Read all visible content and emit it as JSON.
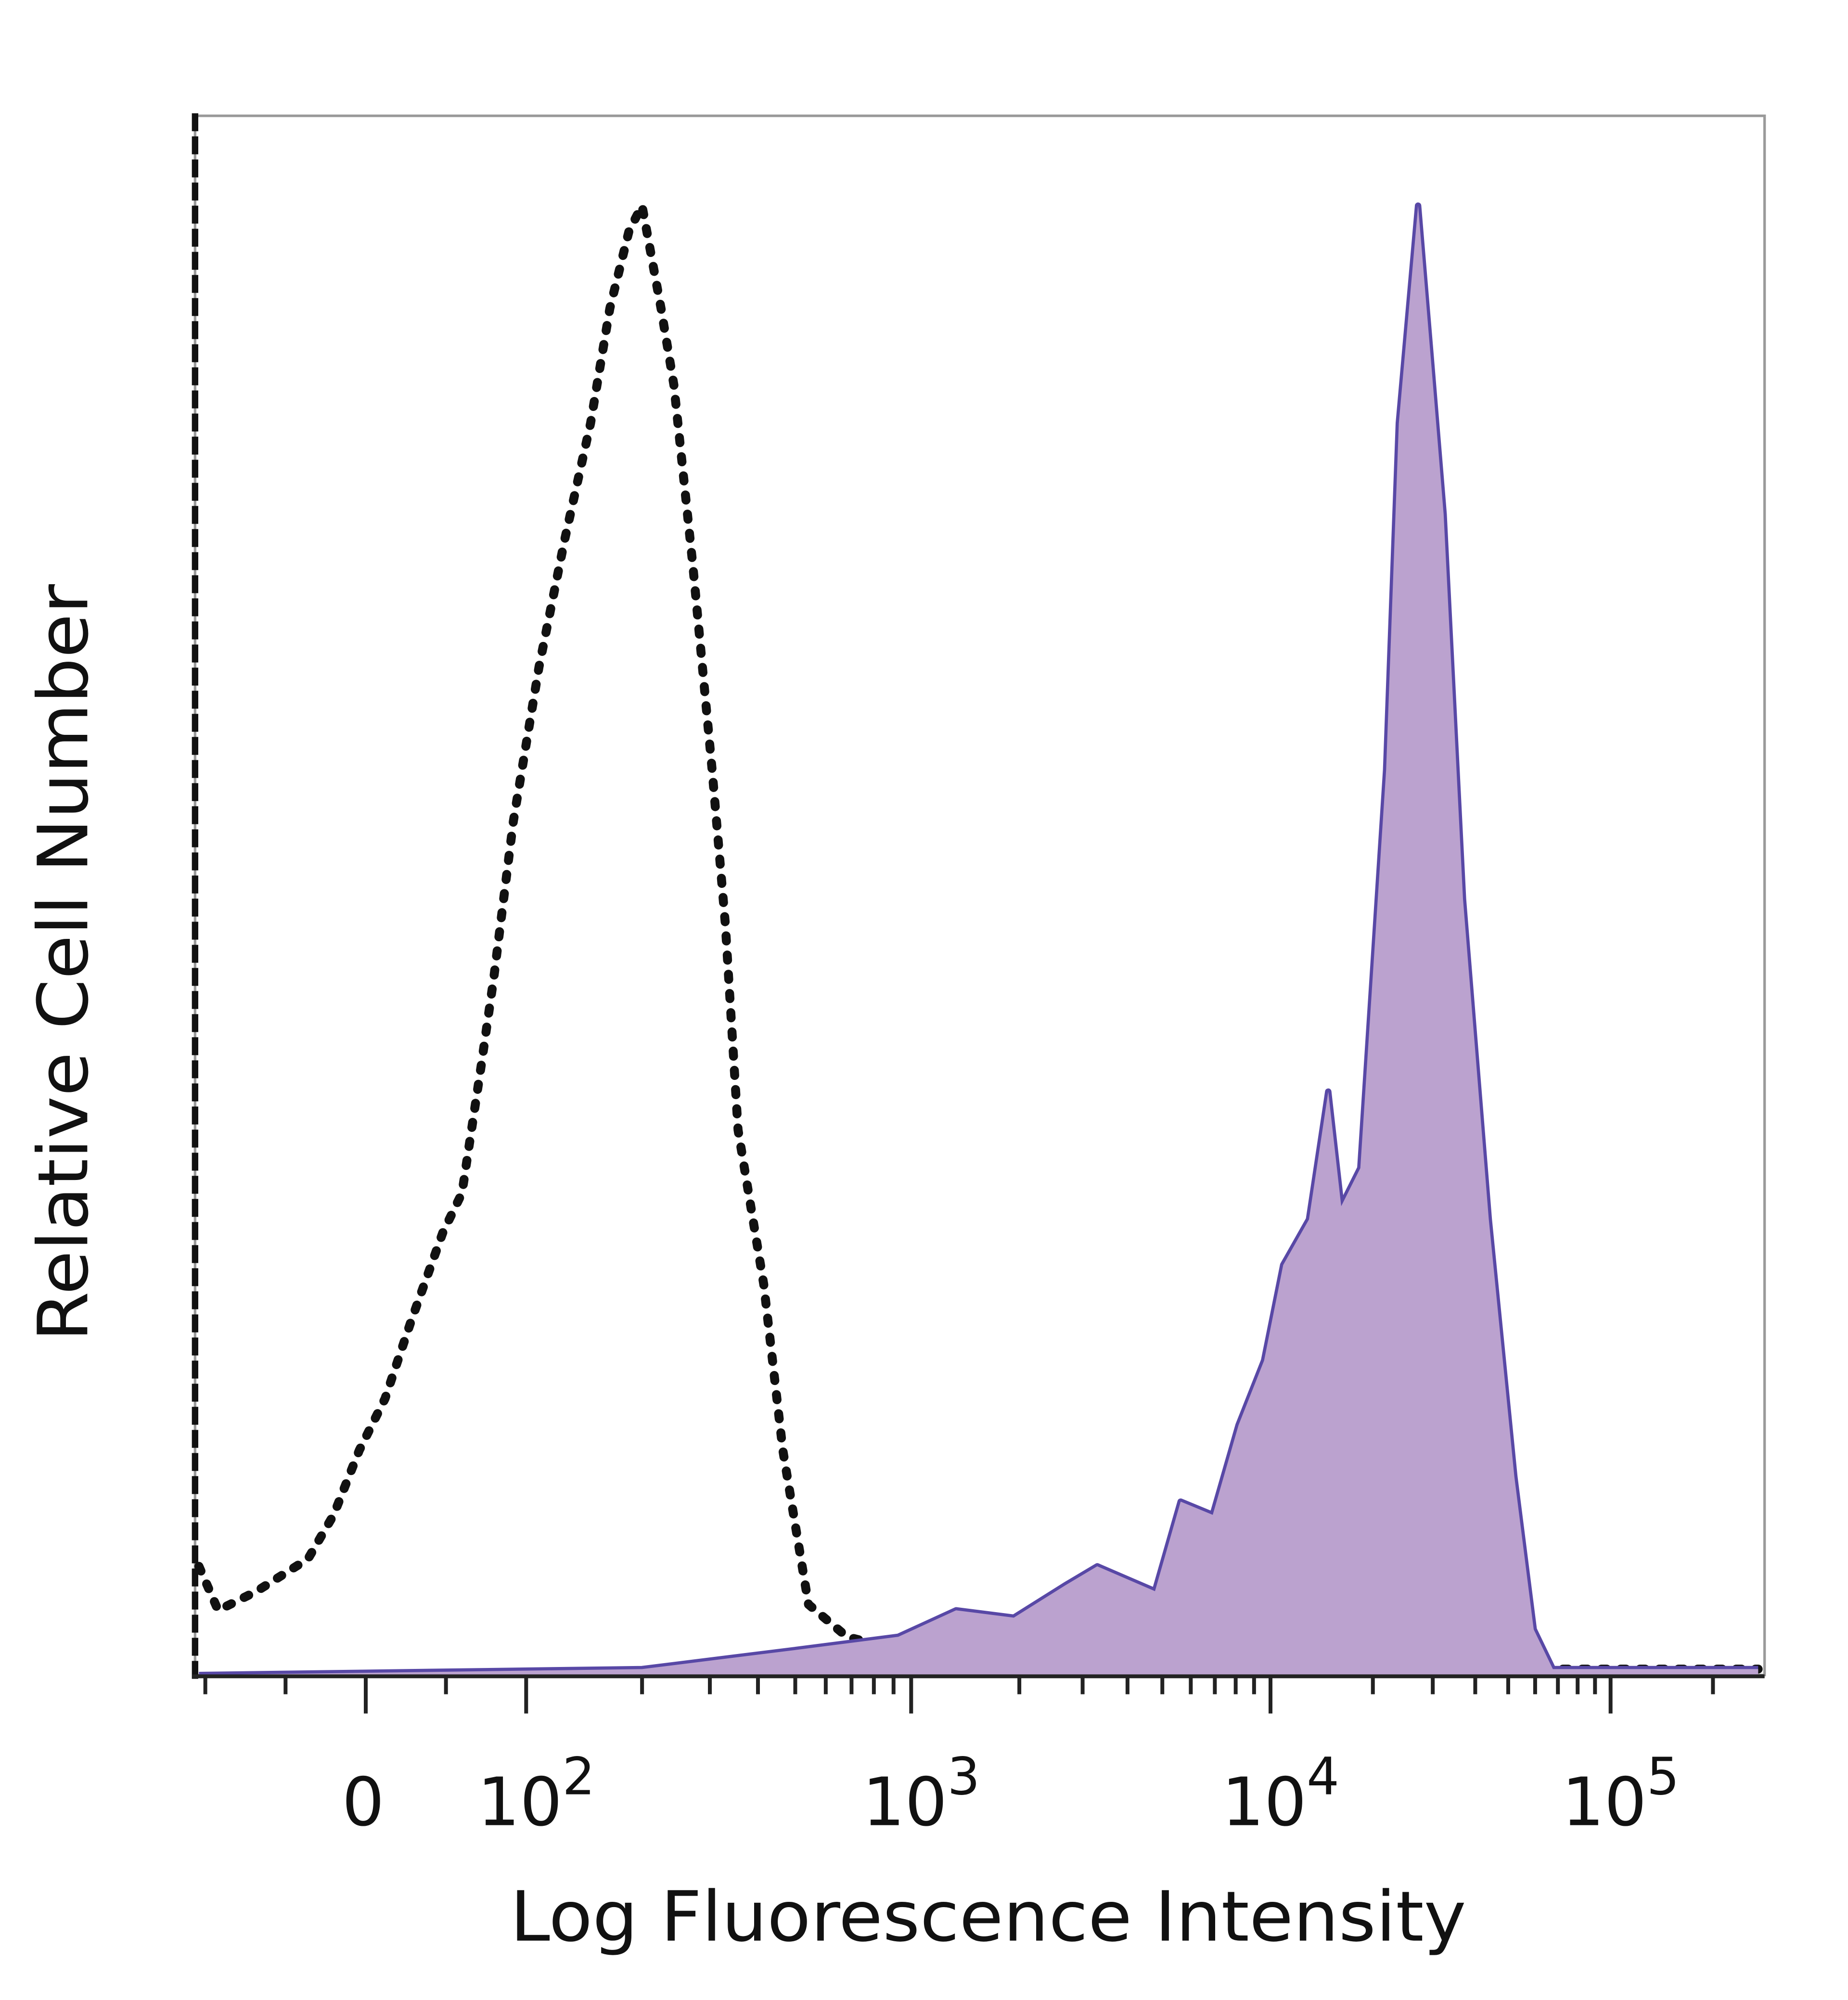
{
  "chart_data": {
    "type": "area",
    "xlabel": "Log Fluorescence Intensity",
    "ylabel": "Relative Cell Number",
    "x_scale": "biexponential",
    "xlim": [
      -106,
      283000
    ],
    "ylim": [
      0,
      105
    ],
    "grid": false,
    "legend": "none",
    "x_ticks": [
      {
        "value": 0,
        "label": "0",
        "exp": ""
      },
      {
        "value": 100,
        "label": "10",
        "exp": "2"
      },
      {
        "value": 1000,
        "label": "10",
        "exp": "3"
      },
      {
        "value": 10000,
        "label": "10",
        "exp": "4"
      },
      {
        "value": 100000,
        "label": "10",
        "exp": "5"
      }
    ],
    "series": [
      {
        "style": "dotted",
        "color": "#111111",
        "fill": "none",
        "x": [
          -104,
          -92,
          -68,
          -36,
          -20,
          -4,
          12,
          28,
          48,
          60,
          72,
          80,
          92,
          108,
          126,
          147,
          165,
          185,
          200,
          224,
          242,
          271,
          304,
          329,
          355,
          414,
          464,
          541,
          681,
          926,
          2097,
          271600
        ],
        "y": [
          7.4,
          4.4,
          5.7,
          7.9,
          10.9,
          15.3,
          18.8,
          24.0,
          30.1,
          32.8,
          41.5,
          47.6,
          58.1,
          68.6,
          77.3,
          85.2,
          93.0,
          98.3,
          100,
          93.0,
          87.8,
          75.5,
          61.6,
          51.1,
          37.1,
          26.6,
          15.3,
          4.8,
          2.6,
          1.7,
          0.4,
          0.4
        ]
      },
      {
        "style": "solid",
        "color": "#5848a6",
        "fill": "#bba2cf",
        "x": [
          -104,
          200,
          501,
          926,
          1334,
          1931,
          2683,
          3296,
          4772,
          5623,
          6906,
          8147,
          9600,
          10900,
          12980,
          14790,
          16140,
          18370,
          21880,
          23850,
          27160,
          29630,
          32300,
          36810,
          43850,
          52120,
          59430,
          67610,
          271600
        ],
        "y": [
          0,
          0.4,
          1.7,
          2.6,
          4.4,
          3.9,
          6.1,
          7.4,
          5.7,
          11.8,
          10.9,
          17.0,
          21.4,
          27.9,
          31.0,
          39.7,
          31.9,
          34.5,
          61.6,
          85.2,
          100,
          89.5,
          79.0,
          52.8,
          31.0,
          13.5,
          3.1,
          0.4,
          0.4
        ]
      }
    ]
  }
}
